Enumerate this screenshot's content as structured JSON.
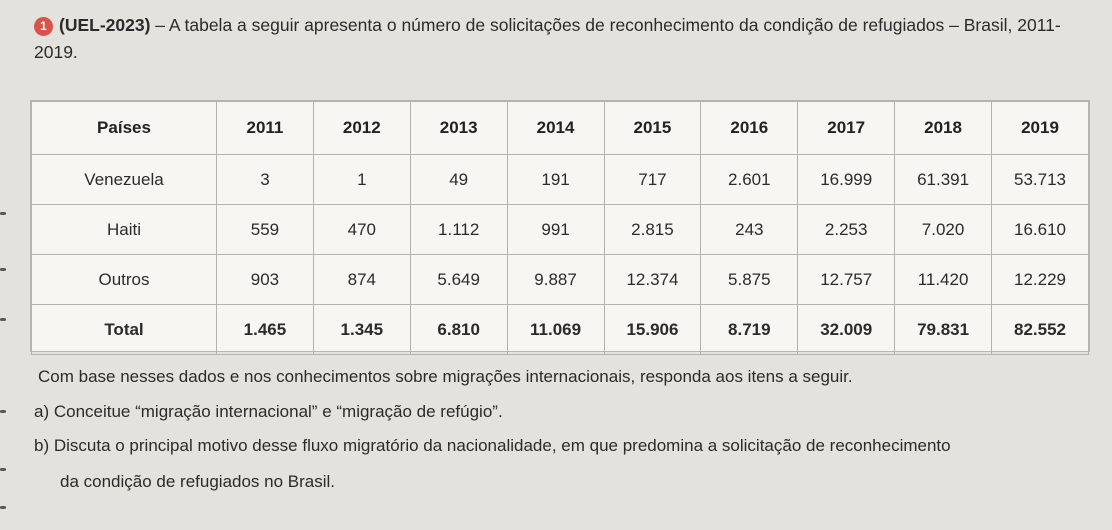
{
  "question": {
    "number": "1",
    "source": "(UEL-2023)",
    "text": "– A tabela a seguir apresenta o número de solicitações de reconhecimento da condição de refugiados – Brasil, 2011-2019."
  },
  "table": {
    "header_label": "Países",
    "years": [
      "2011",
      "2012",
      "2013",
      "2014",
      "2015",
      "2016",
      "2017",
      "2018",
      "2019"
    ],
    "rows": [
      {
        "country": "Venezuela",
        "values": [
          "3",
          "1",
          "49",
          "191",
          "717",
          "2.601",
          "16.999",
          "61.391",
          "53.713"
        ]
      },
      {
        "country": "Haiti",
        "values": [
          "559",
          "470",
          "1.112",
          "991",
          "2.815",
          "243",
          "2.253",
          "7.020",
          "16.610"
        ]
      },
      {
        "country": "Outros",
        "values": [
          "903",
          "874",
          "5.649",
          "9.887",
          "12.374",
          "5.875",
          "12.757",
          "11.420",
          "12.229"
        ]
      },
      {
        "country": "Total",
        "values": [
          "1.465",
          "1.345",
          "6.810",
          "11.069",
          "15.906",
          "8.719",
          "32.009",
          "79.831",
          "82.552"
        ]
      }
    ]
  },
  "prompt": "Com base nesses dados e nos conhecimentos sobre migrações internacionais, responda aos itens a seguir.",
  "items": {
    "a": "a) Conceitue “migração internacional” e “migração de refúgio”.",
    "b_line1": "b) Discuta o principal motivo desse fluxo migratório da nacionalidade, em que predomina a solicitação de reconhecimento",
    "b_line2": "da condição de refugiados no Brasil."
  },
  "chart_data": {
    "type": "table",
    "columns": [
      "Países",
      "2011",
      "2012",
      "2013",
      "2014",
      "2015",
      "2016",
      "2017",
      "2018",
      "2019"
    ],
    "rows": [
      [
        "Venezuela",
        3,
        1,
        49,
        191,
        717,
        2601,
        16999,
        61391,
        53713
      ],
      [
        "Haiti",
        559,
        470,
        1112,
        991,
        2815,
        243,
        2253,
        7020,
        16610
      ],
      [
        "Outros",
        903,
        874,
        5649,
        9887,
        12374,
        5875,
        12757,
        11420,
        12229
      ],
      [
        "Total",
        1465,
        1345,
        6810,
        11069,
        15906,
        8719,
        32009,
        79831,
        82552
      ]
    ]
  }
}
